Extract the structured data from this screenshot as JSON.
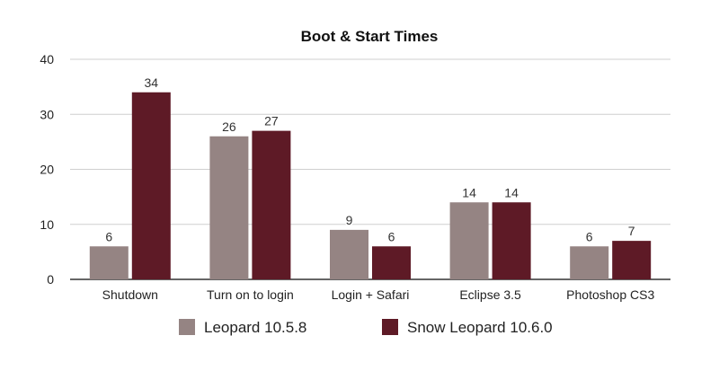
{
  "chart_data": {
    "type": "bar",
    "title": "Boot & Start Times",
    "xlabel": "",
    "ylabel": "",
    "categories": [
      "Shutdown",
      "Turn on to login",
      "Login + Safari",
      "Eclipse 3.5",
      "Photoshop CS3"
    ],
    "series": [
      {
        "name": "Leopard 10.5.8",
        "values": [
          6,
          26,
          9,
          14,
          6
        ],
        "color": "#958483"
      },
      {
        "name": "Snow Leopard 10.6.0",
        "values": [
          34,
          27,
          6,
          14,
          7
        ],
        "color": "#5e1a26"
      }
    ],
    "ylim": [
      0,
      40
    ],
    "yticks": [
      0,
      10,
      20,
      30,
      40
    ],
    "grid": true,
    "legend_position": "bottom",
    "data_labels": true
  }
}
